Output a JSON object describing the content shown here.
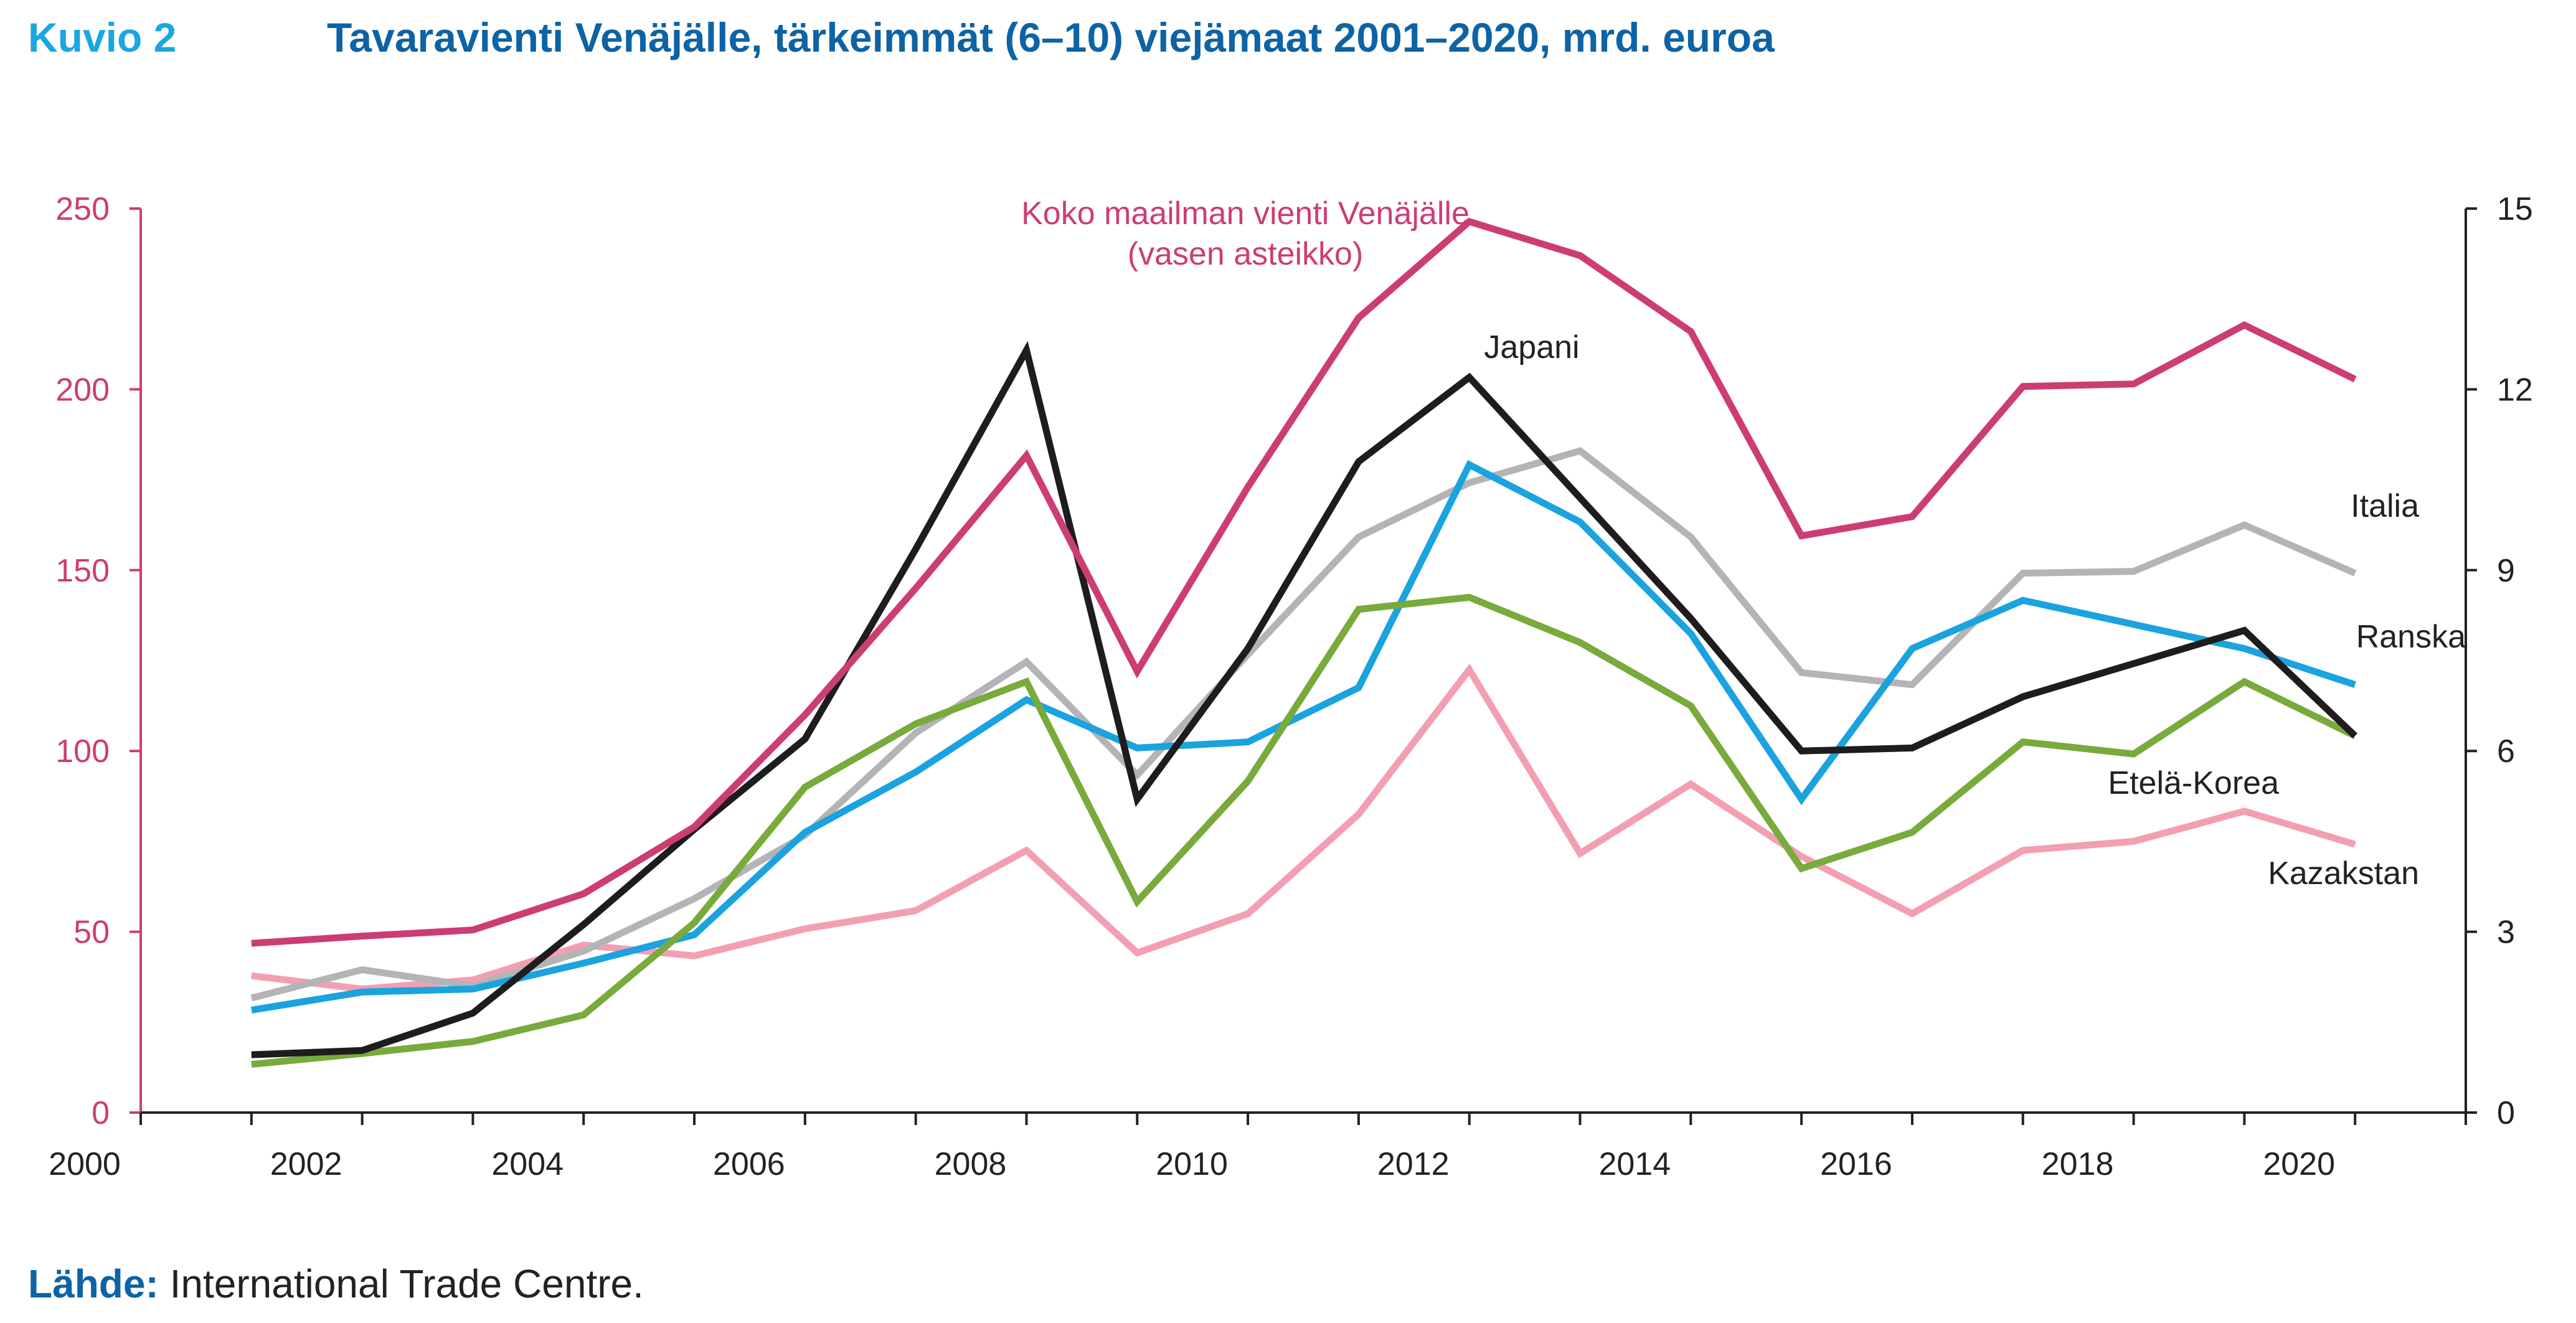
{
  "figure": {
    "label": "Kuvio 2",
    "title": "Tavaravienti Venäjälle, tärkeimmät (6–10) viejämaat 2001–2020, mrd. euroa"
  },
  "source": {
    "label": "Lähde:",
    "text": " International Trade Centre."
  },
  "colors": {
    "world": "#cc3d74",
    "japani": "#1e1c1c",
    "italia": "#b4b4b6",
    "ranska": "#1aa3de",
    "etelakorea": "#78aa3c",
    "kazakstan": "#f39fb2",
    "left_axis": "#cc3d74",
    "right_axis": "#222222"
  },
  "chart_data": {
    "type": "line",
    "x": [
      2001,
      2002,
      2003,
      2004,
      2005,
      2006,
      2007,
      2008,
      2009,
      2010,
      2011,
      2012,
      2013,
      2014,
      2015,
      2016,
      2017,
      2018,
      2019,
      2020
    ],
    "xlim": [
      2000,
      2021
    ],
    "x_ticks": [
      "2000",
      "2002",
      "2004",
      "2006",
      "2008",
      "2010",
      "2012",
      "2014",
      "2016",
      "2018",
      "2020"
    ],
    "ylim_left": [
      0,
      250
    ],
    "ylim_right": [
      0,
      15
    ],
    "left_ticks": [
      "0",
      "50",
      "100",
      "150",
      "200",
      "250"
    ],
    "right_ticks": [
      "0",
      "3",
      "6",
      "9",
      "12",
      "15"
    ],
    "grid": false,
    "series": [
      {
        "name": "Koko maailman vienti Venäjälle",
        "axis": "left",
        "color_key": "world",
        "label": "Koko maailman vienti Venäjälle",
        "label2": "(vasen asteikko)",
        "values": [
          46.8,
          48.8,
          50.5,
          60.5,
          79,
          110,
          145,
          181.7,
          122,
          173,
          219.8,
          246.4,
          237,
          216,
          159.5,
          164.8,
          200.8,
          201.5,
          217.8,
          202.8
        ]
      },
      {
        "name": "Japani",
        "axis": "right",
        "color_key": "japani",
        "label": "Japani",
        "values": [
          0.96,
          1.03,
          1.65,
          3.12,
          4.7,
          6.2,
          9.35,
          12.65,
          5.2,
          7.7,
          10.8,
          12.2,
          10.2,
          8.2,
          6.0,
          6.05,
          6.9,
          7.45,
          8.0,
          6.25
        ]
      },
      {
        "name": "Italia",
        "axis": "right",
        "color_key": "italia",
        "label": "Italia",
        "values": [
          1.9,
          2.37,
          2.1,
          2.68,
          3.55,
          4.6,
          6.3,
          7.48,
          5.6,
          7.6,
          9.55,
          10.45,
          10.98,
          9.55,
          7.3,
          7.1,
          8.95,
          8.98,
          9.75,
          8.95
        ]
      },
      {
        "name": "Ranska",
        "axis": "right",
        "color_key": "ranska",
        "label": "Ranska",
        "values": [
          1.7,
          2.0,
          2.05,
          2.48,
          2.95,
          4.65,
          5.65,
          6.85,
          6.05,
          6.15,
          7.05,
          10.75,
          9.8,
          7.95,
          5.2,
          7.7,
          8.5,
          8.1,
          7.7,
          7.1
        ]
      },
      {
        "name": "Etelä-Korea",
        "axis": "right",
        "color_key": "etelakorea",
        "label": "Etelä-Korea",
        "values": [
          0.8,
          0.98,
          1.18,
          1.62,
          3.15,
          5.4,
          6.45,
          7.15,
          3.5,
          5.5,
          8.35,
          8.55,
          7.8,
          6.75,
          4.05,
          4.65,
          6.15,
          5.95,
          7.15,
          6.25
        ]
      },
      {
        "name": "Kazakstan",
        "axis": "right",
        "color_key": "kazakstan",
        "label": "Kazakstan",
        "values": [
          2.27,
          2.05,
          2.2,
          2.78,
          2.6,
          3.05,
          3.35,
          4.35,
          2.65,
          3.3,
          4.95,
          7.35,
          4.3,
          5.45,
          4.25,
          3.3,
          4.35,
          4.5,
          5.0,
          4.45
        ]
      }
    ]
  }
}
